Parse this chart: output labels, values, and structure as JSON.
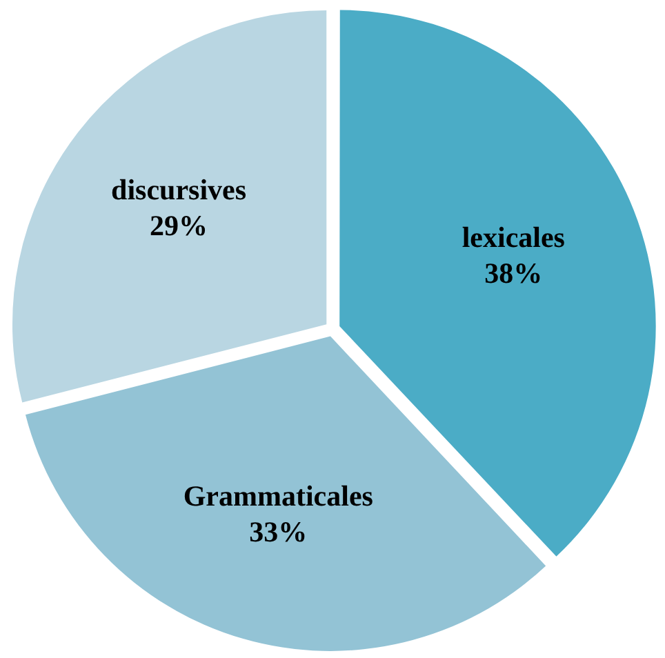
{
  "chart_data": {
    "type": "pie",
    "categories": [
      "lexicales",
      "Grammaticales",
      "discursives"
    ],
    "values": [
      38,
      33,
      29
    ],
    "colors": [
      "#4bacc6",
      "#93c3d5",
      "#b9d6e2"
    ],
    "value_labels": [
      "38%",
      "33%",
      "29%"
    ],
    "legend": false
  }
}
